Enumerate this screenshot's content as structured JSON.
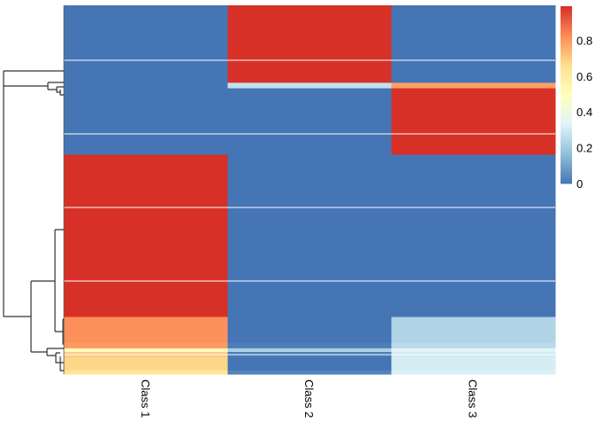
{
  "chart_data": {
    "type": "heatmap",
    "columns": [
      "Class 1",
      "Class 2",
      "Class 3"
    ],
    "row_blocks": [
      {
        "rows": 42,
        "values": [
          0.0,
          1.0,
          0.0
        ]
      },
      {
        "rows": 3,
        "values": [
          0.0,
          0.27,
          0.79
        ]
      },
      {
        "rows": 36,
        "values": [
          0.0,
          0.0,
          1.0
        ]
      },
      {
        "rows": 88,
        "values": [
          1.0,
          0.0,
          0.0
        ]
      },
      {
        "rows": 14,
        "values": [
          0.82,
          0.0,
          0.23
        ]
      },
      {
        "rows": 3,
        "values": [
          0.8,
          0.02,
          0.25
        ]
      },
      {
        "rows": 2,
        "values": [
          0.52,
          0.22,
          0.34
        ]
      },
      {
        "rows": 3,
        "values": [
          0.7,
          0.01,
          0.3
        ]
      },
      {
        "rows": 7,
        "values": [
          0.68,
          0.0,
          0.31
        ]
      },
      {
        "rows": 2,
        "values": [
          0.63,
          0.03,
          0.32
        ]
      }
    ],
    "color_scale": {
      "range": [
        0,
        0.99
      ],
      "colors": [
        "#4575B4",
        "#91BFDB",
        "#E0F3F8",
        "#FFFFBF",
        "#FEE090",
        "#FC8D59",
        "#D73027"
      ]
    },
    "legend": {
      "ticks": [
        "0",
        "0.2",
        "0.4",
        "0.6",
        "0.8"
      ],
      "tick_values": [
        0,
        0.2,
        0.4,
        0.6,
        0.8
      ],
      "position": "right"
    },
    "row_dendrogram": true,
    "grid": false
  }
}
